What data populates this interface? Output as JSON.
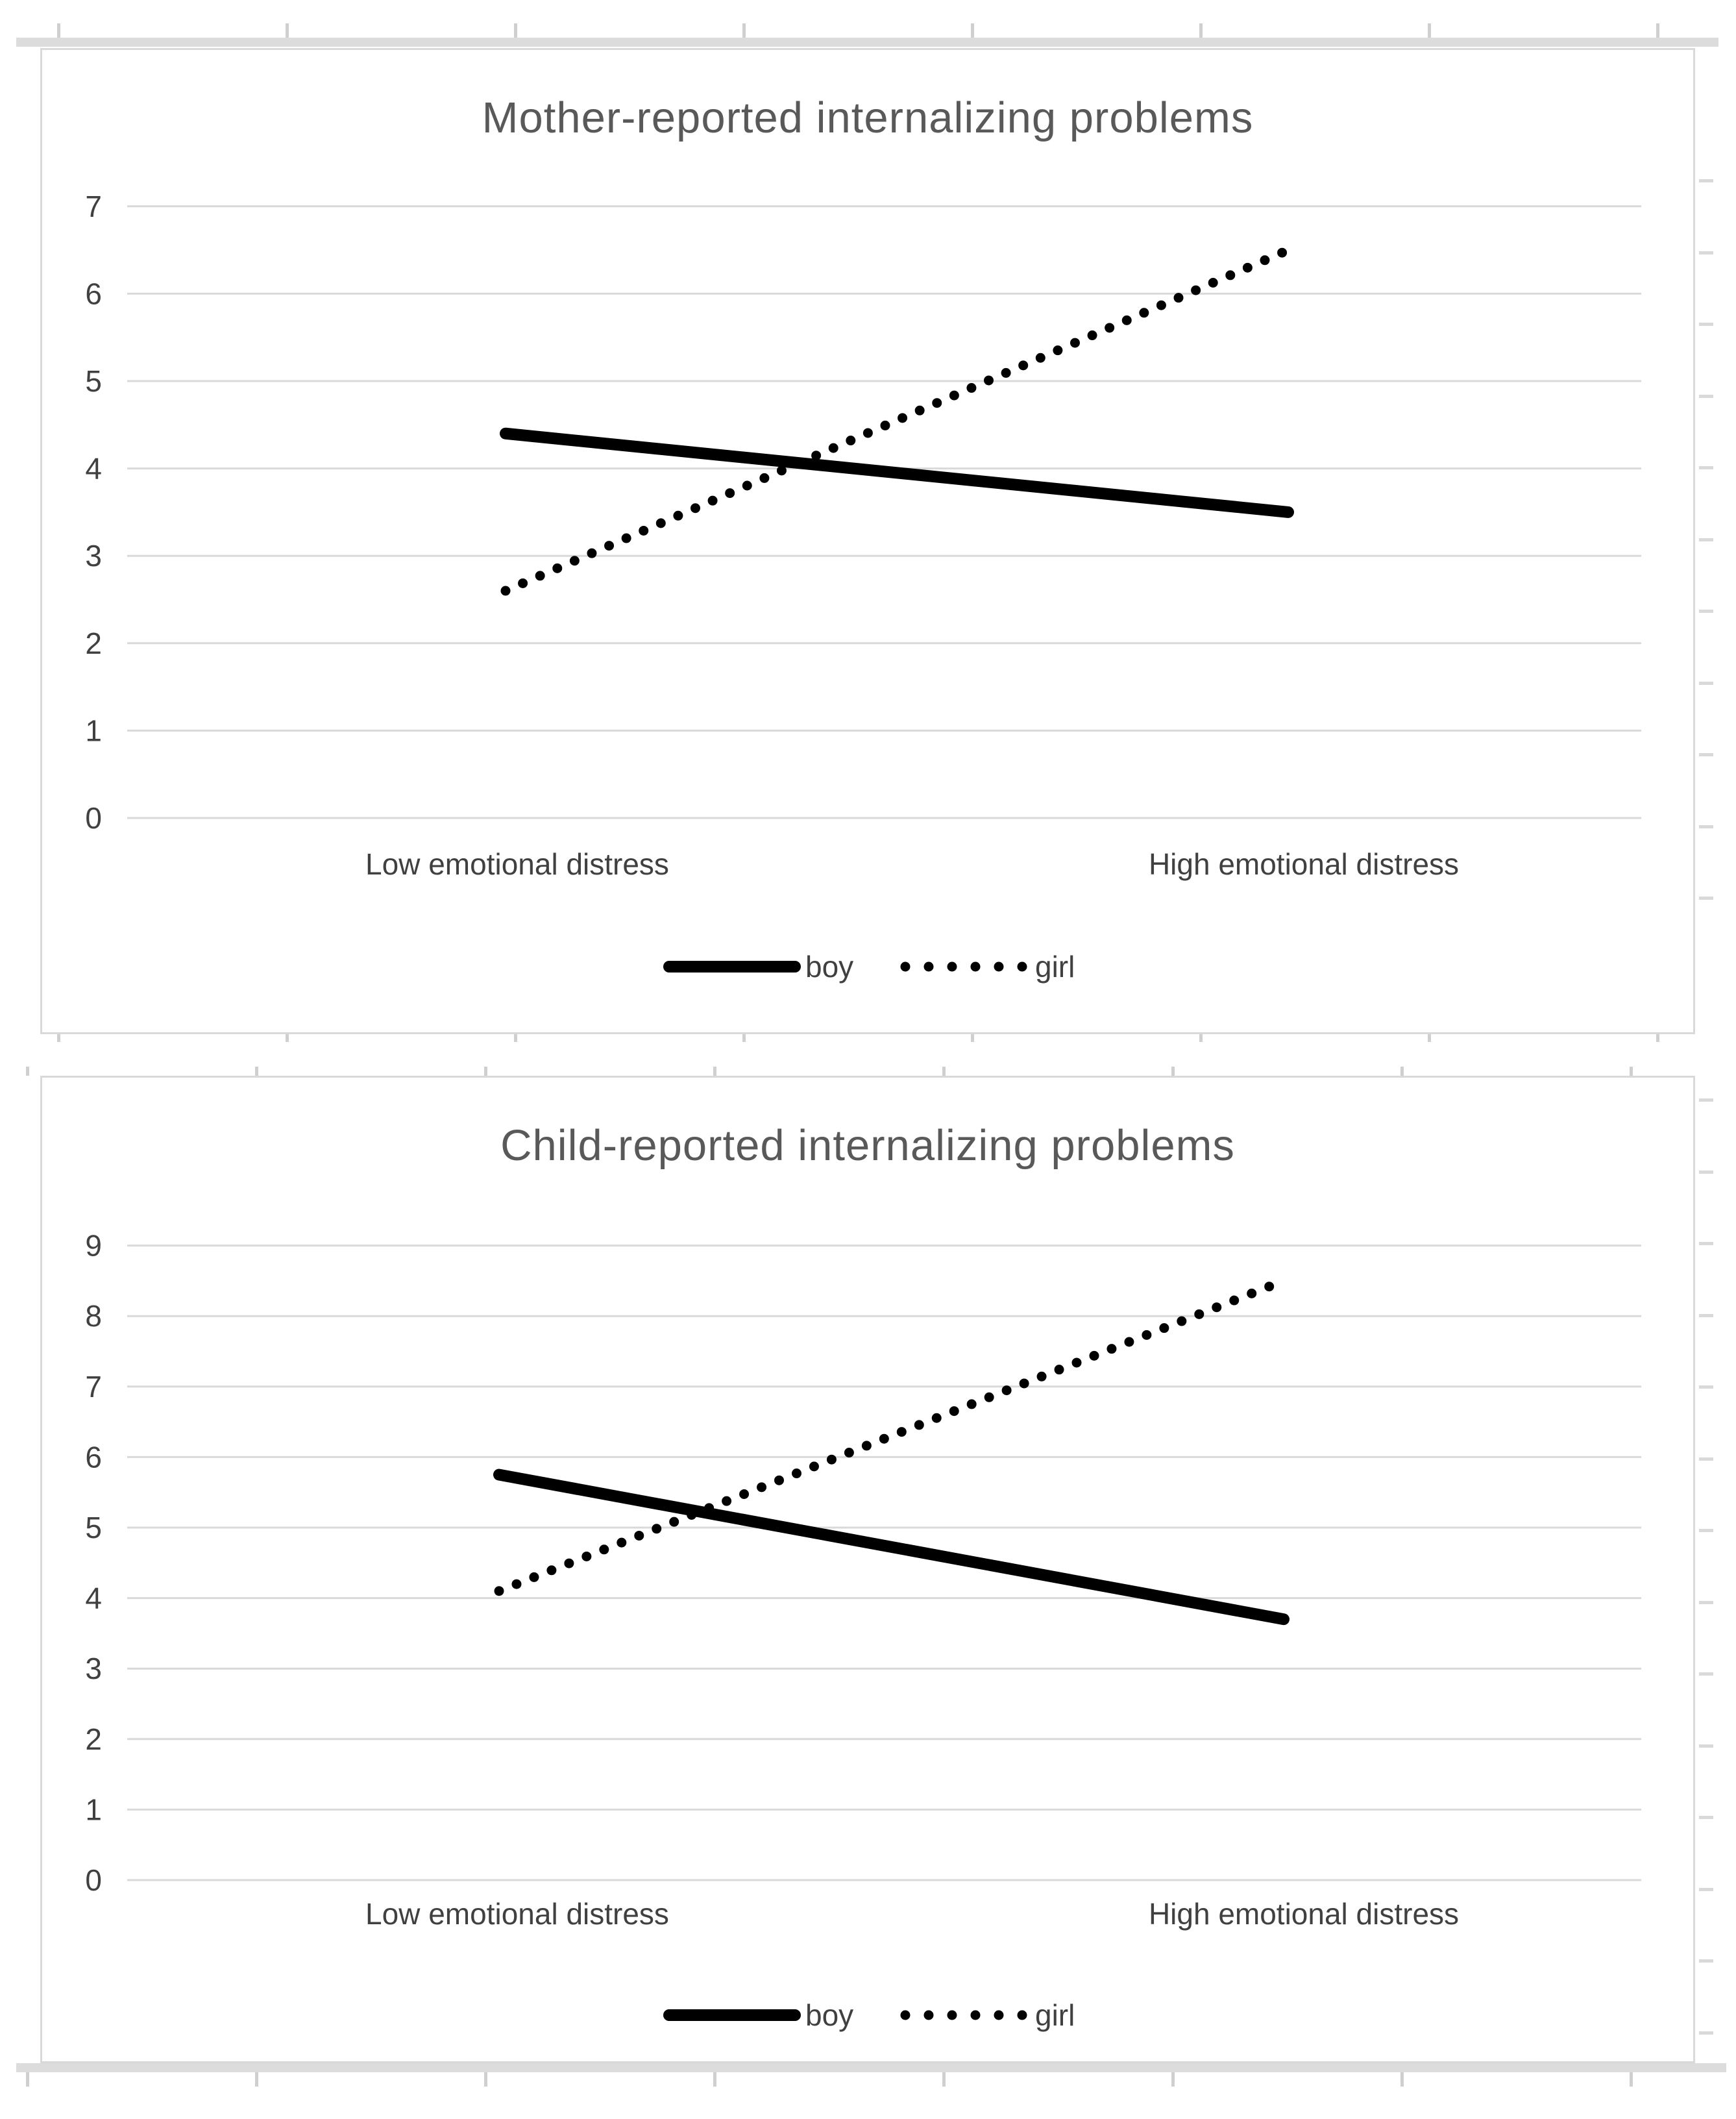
{
  "colors": {
    "line": "#000000",
    "title_text": "#595959",
    "axis_text": "#404040",
    "gridline": "#d9d9d9",
    "frame": "#d9d9d9"
  },
  "chart_data": [
    {
      "type": "line",
      "title": "Mother-reported internalizing problems",
      "categories": [
        "Low emotional distress",
        "High emotional distress"
      ],
      "series": [
        {
          "name": "boy",
          "style": "solid",
          "values": [
            4.4,
            3.5
          ]
        },
        {
          "name": "girl",
          "style": "dotted",
          "values": [
            2.6,
            6.5
          ]
        }
      ],
      "ylim": [
        0,
        7
      ],
      "ytick_labels": [
        "0",
        "1",
        "2",
        "3",
        "4",
        "5",
        "6",
        "7"
      ],
      "grid": true,
      "legend_position": "bottom",
      "legend_entries": [
        "boy",
        "girl"
      ]
    },
    {
      "type": "line",
      "title": "Child-reported internalizing problems",
      "categories": [
        "Low emotional distress",
        "High emotional distress"
      ],
      "series": [
        {
          "name": "boy",
          "style": "solid",
          "values": [
            5.75,
            3.7
          ]
        },
        {
          "name": "girl",
          "style": "dotted",
          "values": [
            4.1,
            8.5
          ]
        }
      ],
      "ylim": [
        0,
        9
      ],
      "ytick_labels": [
        "0",
        "1",
        "2",
        "3",
        "4",
        "5",
        "6",
        "7",
        "8",
        "9"
      ],
      "grid": true,
      "legend_position": "bottom",
      "legend_entries": [
        "boy",
        "girl"
      ]
    }
  ]
}
